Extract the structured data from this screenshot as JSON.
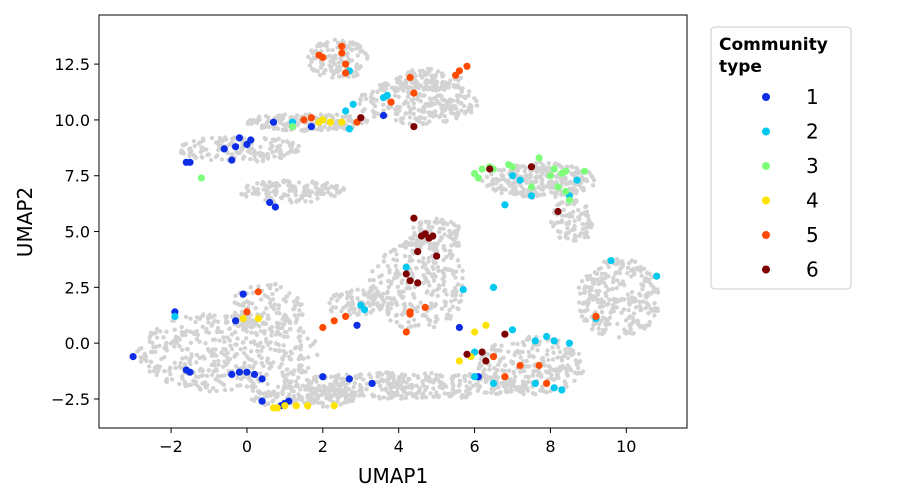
{
  "chart_data": {
    "type": "scatter",
    "xlabel": "UMAP1",
    "ylabel": "UMAP2",
    "xlim": [
      -3.9,
      11.6
    ],
    "ylim": [
      -3.8,
      14.7
    ],
    "xticks": [
      -2,
      0,
      2,
      4,
      6,
      8,
      10
    ],
    "yticks": [
      -2.5,
      0.0,
      2.5,
      5.0,
      7.5,
      10.0,
      12.5
    ],
    "xtick_labels": [
      "−2",
      "0",
      "2",
      "4",
      "6",
      "8",
      "10"
    ],
    "ytick_labels": [
      "−2.5",
      "0.0",
      "2.5",
      "5.0",
      "7.5",
      "10.0",
      "12.5"
    ],
    "grid": false,
    "legend": {
      "title": "Community type",
      "title_lines": [
        "Community",
        "type"
      ],
      "placement": "outside-right-top"
    },
    "background": {
      "color": "#d3d3d3",
      "regions": [
        {
          "cx": -0.5,
          "cy": -0.4,
          "rx": 2.4,
          "ry": 1.8,
          "n": 420
        },
        {
          "cx": 0.5,
          "cy": 1.5,
          "rx": 1.0,
          "ry": 1.2,
          "n": 120
        },
        {
          "cx": 1.5,
          "cy": -2.4,
          "rx": 1.5,
          "ry": 0.5,
          "n": 140
        },
        {
          "cx": 4.2,
          "cy": -1.9,
          "rx": 3.4,
          "ry": 0.6,
          "n": 360
        },
        {
          "cx": 7.5,
          "cy": -1.0,
          "rx": 1.4,
          "ry": 1.3,
          "n": 220
        },
        {
          "cx": 9.8,
          "cy": 2.0,
          "rx": 1.1,
          "ry": 1.8,
          "n": 260
        },
        {
          "cx": 4.5,
          "cy": 2.6,
          "rx": 1.3,
          "ry": 2.0,
          "n": 260
        },
        {
          "cx": 5.0,
          "cy": 4.8,
          "rx": 0.7,
          "ry": 0.8,
          "n": 90
        },
        {
          "cx": 3.0,
          "cy": 1.8,
          "rx": 1.0,
          "ry": 0.6,
          "n": 90
        },
        {
          "cx": 7.7,
          "cy": 7.3,
          "rx": 1.5,
          "ry": 0.8,
          "n": 260
        },
        {
          "cx": 8.6,
          "cy": 5.5,
          "rx": 0.6,
          "ry": 1.0,
          "n": 90
        },
        {
          "cx": -0.2,
          "cy": 8.7,
          "rx": 1.6,
          "ry": 0.6,
          "n": 160
        },
        {
          "cx": 1.6,
          "cy": 9.9,
          "rx": 1.6,
          "ry": 0.4,
          "n": 170
        },
        {
          "cx": 1.2,
          "cy": 6.8,
          "rx": 1.4,
          "ry": 0.5,
          "n": 140
        },
        {
          "cx": 4.5,
          "cy": 10.8,
          "rx": 1.6,
          "ry": 1.0,
          "n": 240
        },
        {
          "cx": 2.4,
          "cy": 12.7,
          "rx": 0.8,
          "ry": 0.9,
          "n": 120
        },
        {
          "cx": 4.8,
          "cy": 11.8,
          "rx": 0.9,
          "ry": 0.5,
          "n": 80
        }
      ]
    },
    "series": [
      {
        "name": "1",
        "color": "#0c2ee6",
        "points": [
          [
            -3.0,
            -0.6
          ],
          [
            -1.9,
            1.4
          ],
          [
            -1.6,
            -1.2
          ],
          [
            -1.5,
            -1.3
          ],
          [
            -0.4,
            -1.4
          ],
          [
            -0.2,
            -1.3
          ],
          [
            0.0,
            -1.3
          ],
          [
            0.2,
            -1.4
          ],
          [
            0.4,
            -1.6
          ],
          [
            0.4,
            -2.6
          ],
          [
            0.9,
            -2.8
          ],
          [
            1.0,
            -2.7
          ],
          [
            1.1,
            -2.6
          ],
          [
            -0.3,
            1.0
          ],
          [
            -0.1,
            2.2
          ],
          [
            -1.6,
            8.1
          ],
          [
            -1.5,
            8.1
          ],
          [
            -0.6,
            8.7
          ],
          [
            -0.4,
            8.2
          ],
          [
            -0.3,
            8.8
          ],
          [
            -0.2,
            9.2
          ],
          [
            0.0,
            8.9
          ],
          [
            0.1,
            9.1
          ],
          [
            0.6,
            6.3
          ],
          [
            0.75,
            6.1
          ],
          [
            0.7,
            9.9
          ],
          [
            1.7,
            9.7
          ],
          [
            2.9,
            0.8
          ],
          [
            2.0,
            -1.5
          ],
          [
            2.7,
            -1.6
          ],
          [
            3.3,
            -1.8
          ],
          [
            3.6,
            10.2
          ],
          [
            5.6,
            0.7
          ],
          [
            6.1,
            -1.5
          ]
        ]
      },
      {
        "name": "2",
        "color": "#00c8f0",
        "points": [
          [
            -1.9,
            1.2
          ],
          [
            1.2,
            9.9
          ],
          [
            2.0,
            10.0
          ],
          [
            2.6,
            10.4
          ],
          [
            2.7,
            9.6
          ],
          [
            2.8,
            10.7
          ],
          [
            2.7,
            12.2
          ],
          [
            3.6,
            11.0
          ],
          [
            3.7,
            11.1
          ],
          [
            3.0,
            1.7
          ],
          [
            3.1,
            1.5
          ],
          [
            4.2,
            3.4
          ],
          [
            5.7,
            2.4
          ],
          [
            6.5,
            2.5
          ],
          [
            6.0,
            -0.4
          ],
          [
            6.0,
            -1.5
          ],
          [
            6.5,
            -1.8
          ],
          [
            6.8,
            6.2
          ],
          [
            7.0,
            7.5
          ],
          [
            7.2,
            7.3
          ],
          [
            7.5,
            6.6
          ],
          [
            8.5,
            6.6
          ],
          [
            8.7,
            7.3
          ],
          [
            9.6,
            3.7
          ],
          [
            10.8,
            3.0
          ],
          [
            7.0,
            0.6
          ],
          [
            7.6,
            0.1
          ],
          [
            7.9,
            0.3
          ],
          [
            8.1,
            0.1
          ],
          [
            8.5,
            0.0
          ],
          [
            7.6,
            -1.8
          ],
          [
            8.1,
            -2.0
          ],
          [
            8.3,
            -2.1
          ],
          [
            9.2,
            1.1
          ]
        ]
      },
      {
        "name": "3",
        "color": "#7dff7a",
        "points": [
          [
            -1.2,
            7.4
          ],
          [
            1.2,
            9.7
          ],
          [
            6.0,
            7.6
          ],
          [
            6.1,
            7.4
          ],
          [
            6.2,
            7.8
          ],
          [
            6.4,
            7.9
          ],
          [
            6.5,
            7.8
          ],
          [
            6.9,
            8.0
          ],
          [
            7.0,
            7.9
          ],
          [
            7.5,
            7.0
          ],
          [
            7.7,
            8.3
          ],
          [
            8.0,
            7.5
          ],
          [
            8.1,
            7.8
          ],
          [
            8.2,
            7.0
          ],
          [
            8.3,
            7.6
          ],
          [
            8.4,
            7.7
          ],
          [
            8.4,
            6.8
          ],
          [
            8.5,
            6.4
          ],
          [
            8.9,
            7.7
          ]
        ]
      },
      {
        "name": "4",
        "color": "#ffe300",
        "points": [
          [
            -0.1,
            1.1
          ],
          [
            0.3,
            1.1
          ],
          [
            0.7,
            -2.9
          ],
          [
            0.8,
            -2.9
          ],
          [
            1.0,
            -2.8
          ],
          [
            1.3,
            -2.8
          ],
          [
            1.6,
            -2.8
          ],
          [
            2.3,
            -2.8
          ],
          [
            1.9,
            9.9
          ],
          [
            2.0,
            10.0
          ],
          [
            2.2,
            9.9
          ],
          [
            2.5,
            9.9
          ],
          [
            6.0,
            0.5
          ],
          [
            6.3,
            0.8
          ],
          [
            5.6,
            -0.8
          ],
          [
            5.9,
            -0.6
          ]
        ]
      },
      {
        "name": "5",
        "color": "#ff4a00",
        "points": [
          [
            0.0,
            1.4
          ],
          [
            0.3,
            2.3
          ],
          [
            2.0,
            0.7
          ],
          [
            2.3,
            1.0
          ],
          [
            2.6,
            1.2
          ],
          [
            1.5,
            10.0
          ],
          [
            1.7,
            10.1
          ],
          [
            1.9,
            12.9
          ],
          [
            2.0,
            12.8
          ],
          [
            2.5,
            13.3
          ],
          [
            2.5,
            13.0
          ],
          [
            2.6,
            12.5
          ],
          [
            2.6,
            12.1
          ],
          [
            2.9,
            9.9
          ],
          [
            3.8,
            10.8
          ],
          [
            4.3,
            11.9
          ],
          [
            4.4,
            11.2
          ],
          [
            4.7,
            1.6
          ],
          [
            4.3,
            1.4
          ],
          [
            4.3,
            1.3
          ],
          [
            4.2,
            0.5
          ],
          [
            5.5,
            12.0
          ],
          [
            5.6,
            12.2
          ],
          [
            5.8,
            12.4
          ],
          [
            6.5,
            -0.6
          ],
          [
            6.8,
            -1.5
          ],
          [
            7.2,
            -1.0
          ],
          [
            7.7,
            -1.0
          ],
          [
            7.9,
            -1.8
          ],
          [
            9.2,
            1.2
          ]
        ]
      },
      {
        "name": "6",
        "color": "#7f0000",
        "points": [
          [
            3.0,
            10.1
          ],
          [
            4.4,
            9.7
          ],
          [
            4.4,
            5.6
          ],
          [
            4.6,
            4.8
          ],
          [
            4.7,
            4.9
          ],
          [
            4.8,
            4.7
          ],
          [
            4.9,
            4.8
          ],
          [
            5.0,
            3.9
          ],
          [
            4.5,
            4.1
          ],
          [
            4.2,
            3.1
          ],
          [
            4.3,
            2.8
          ],
          [
            4.5,
            2.7
          ],
          [
            6.4,
            7.8
          ],
          [
            7.5,
            7.9
          ],
          [
            8.2,
            5.9
          ],
          [
            5.8,
            -0.5
          ],
          [
            6.2,
            -0.4
          ],
          [
            6.3,
            -0.8
          ],
          [
            6.8,
            0.4
          ]
        ]
      }
    ]
  }
}
